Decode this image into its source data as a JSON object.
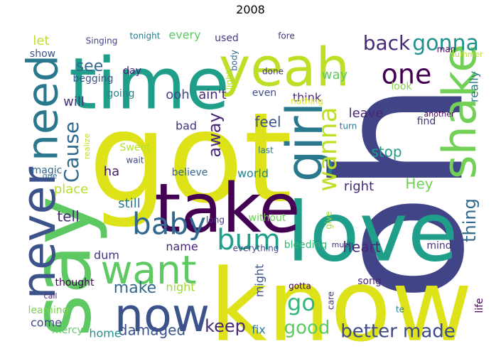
{
  "title": "2008",
  "words": [
    {
      "text": "oh"
    },
    {
      "text": "know"
    },
    {
      "text": "got"
    },
    {
      "text": "love"
    },
    {
      "text": "time"
    },
    {
      "text": "take"
    },
    {
      "text": "say"
    },
    {
      "text": "yeah"
    },
    {
      "text": "girl"
    },
    {
      "text": "shake"
    },
    {
      "text": "never"
    },
    {
      "text": "now"
    },
    {
      "text": "want"
    },
    {
      "text": "need"
    },
    {
      "text": "one"
    },
    {
      "text": "baby"
    },
    {
      "text": "gonna"
    },
    {
      "text": "bum"
    },
    {
      "text": "wanna"
    },
    {
      "text": "back"
    },
    {
      "text": "Cause"
    },
    {
      "text": "better made"
    },
    {
      "text": "keep"
    },
    {
      "text": "go"
    },
    {
      "text": "good"
    },
    {
      "text": "away"
    },
    {
      "text": "make"
    },
    {
      "text": "damaged"
    },
    {
      "text": "see"
    },
    {
      "text": "thing"
    },
    {
      "text": "heart"
    },
    {
      "text": "feel"
    },
    {
      "text": "stop"
    },
    {
      "text": "way"
    },
    {
      "text": "leave"
    },
    {
      "text": "ooh"
    },
    {
      "text": "ain't"
    },
    {
      "text": "will"
    },
    {
      "text": "Hey"
    },
    {
      "text": "right"
    },
    {
      "text": "tell"
    },
    {
      "text": "still"
    },
    {
      "text": "ha"
    },
    {
      "text": "place"
    },
    {
      "text": "home"
    },
    {
      "text": "come"
    },
    {
      "text": "fix"
    },
    {
      "text": "world"
    },
    {
      "text": "really"
    },
    {
      "text": "let"
    },
    {
      "text": "every"
    },
    {
      "text": "think"
    },
    {
      "text": "name"
    },
    {
      "text": "night"
    },
    {
      "text": "might"
    },
    {
      "text": "life"
    },
    {
      "text": "dum"
    },
    {
      "text": "bad"
    },
    {
      "text": "look"
    },
    {
      "text": "song"
    },
    {
      "text": "mind"
    },
    {
      "text": "mercy"
    },
    {
      "text": "day"
    },
    {
      "text": "show"
    },
    {
      "text": "going"
    },
    {
      "text": "used"
    },
    {
      "text": "without"
    },
    {
      "text": "bleeding"
    },
    {
      "text": "thought"
    },
    {
      "text": "believe"
    },
    {
      "text": "magic"
    },
    {
      "text": "learning"
    },
    {
      "text": "even"
    },
    {
      "text": "begging"
    },
    {
      "text": "find"
    },
    {
      "text": "long"
    },
    {
      "text": "Singing"
    },
    {
      "text": "tonight"
    },
    {
      "text": "fore"
    },
    {
      "text": "man"
    },
    {
      "text": "body"
    },
    {
      "text": "light"
    },
    {
      "text": "done"
    },
    {
      "text": "nothing"
    },
    {
      "text": "summer"
    },
    {
      "text": "realize"
    },
    {
      "text": "Sweet"
    },
    {
      "text": "wait"
    },
    {
      "text": "last"
    },
    {
      "text": "turn"
    },
    {
      "text": "another"
    },
    {
      "text": "que"
    },
    {
      "text": "give"
    },
    {
      "text": "gotta"
    },
    {
      "text": "care"
    },
    {
      "text": "everything"
    },
    {
      "text": "much"
    },
    {
      "text": "call"
    },
    {
      "text": "te"
    }
  ]
}
